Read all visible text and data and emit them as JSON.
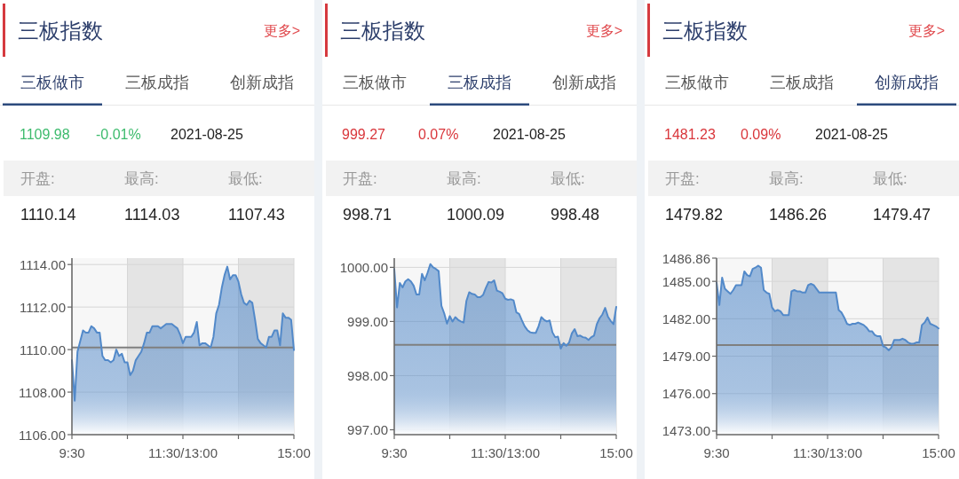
{
  "chart_data": [
    {
      "type": "area",
      "title": "三板指数",
      "annotations": [
        "更多>",
        "三板做市",
        "三板成指",
        "创新成指",
        "1109.98",
        "-0.01%",
        "2021-08-25",
        "开盘:",
        "最高:",
        "最低:",
        "1110.14",
        "1114.03",
        "1107.43"
      ],
      "color": "#5289c9",
      "categories": [
        "9:30",
        null,
        null,
        null,
        null,
        null,
        null,
        null,
        null,
        null,
        null,
        null,
        null,
        null,
        null,
        null,
        null,
        null,
        null,
        null,
        null,
        null,
        null,
        null,
        null,
        null,
        null,
        null,
        null,
        null,
        null,
        null,
        null,
        null,
        null,
        null,
        null,
        null,
        null,
        null,
        "11:30/13:00",
        null,
        null,
        null,
        null,
        null,
        null,
        null,
        null,
        null,
        null,
        null,
        null,
        null,
        null,
        null,
        null,
        null,
        null,
        null,
        null,
        null,
        null,
        null,
        null,
        null,
        null,
        null,
        null,
        null,
        null,
        null,
        null,
        null,
        null,
        null,
        null,
        null,
        null,
        null,
        "15:00"
      ],
      "values": [
        1109.5,
        1107.6,
        1109.9,
        1110.4,
        1110.9,
        1110.8,
        1110.8,
        1111.1,
        1111.0,
        1110.8,
        1110.8,
        1109.7,
        1109.5,
        1109.5,
        1109.4,
        1109.5,
        1110.0,
        1109.7,
        1109.8,
        1109.4,
        1109.4,
        1108.8,
        1109.0,
        1109.5,
        1109.7,
        1109.9,
        1110.3,
        1110.8,
        1110.8,
        1111.1,
        1111.1,
        1111.1,
        1111.0,
        1111.1,
        1111.2,
        1111.2,
        1111.2,
        1111.1,
        1111.0,
        1110.7,
        1110.3,
        1110.6,
        1110.6,
        1110.6,
        1110.8,
        1111.3,
        1110.2,
        1110.3,
        1110.3,
        1110.2,
        1110.1,
        1110.6,
        1111.7,
        1112.1,
        1112.9,
        1113.5,
        1113.9,
        1113.3,
        1113.5,
        1113.5,
        1113.2,
        1112.6,
        1112.2,
        1112.1,
        1112.3,
        1112.2,
        1111.4,
        1110.5,
        1110.3,
        1110.2,
        1110.1,
        1110.6,
        1110.6,
        1110.9,
        1110.9,
        1110.2,
        1111.7,
        1111.5,
        1111.5,
        1111.4,
        1109.98
      ],
      "ylim": [
        1106,
        1114.3
      ],
      "yticks": [
        {
          "value": 1106,
          "label": "1106.00"
        },
        {
          "value": 1108,
          "label": "1108.00"
        },
        {
          "value": 1110,
          "label": "1110.00"
        },
        {
          "value": 1112,
          "label": "1112.00"
        },
        {
          "value": 1114,
          "label": "1114.00"
        }
      ],
      "grid": true,
      "ref_lines": [
        {
          "axis": "y",
          "value": 1110.1,
          "color": "#7f7f7f"
        }
      ]
    },
    {
      "type": "area",
      "title": "三板指数",
      "annotations": [
        "更多>",
        "三板做市",
        "三板成指",
        "创新成指",
        "999.27",
        "0.07%",
        "2021-08-25",
        "开盘:",
        "最高:",
        "最低:",
        "998.71",
        "1000.09",
        "998.48"
      ],
      "color": "#5289c9",
      "categories": [
        "9:30",
        null,
        null,
        null,
        null,
        null,
        null,
        null,
        null,
        null,
        null,
        null,
        null,
        null,
        null,
        null,
        null,
        null,
        null,
        null,
        null,
        null,
        null,
        null,
        null,
        null,
        null,
        null,
        null,
        null,
        null,
        null,
        null,
        null,
        null,
        null,
        null,
        null,
        null,
        null,
        "11:30/13:00",
        null,
        null,
        null,
        null,
        null,
        null,
        null,
        null,
        null,
        null,
        null,
        null,
        null,
        null,
        null,
        null,
        null,
        null,
        null,
        null,
        null,
        null,
        null,
        null,
        null,
        null,
        null,
        null,
        null,
        null,
        null,
        null,
        null,
        null,
        null,
        null,
        null,
        null,
        null,
        "15:00"
      ],
      "values": [
        999.97,
        999.26,
        999.71,
        999.63,
        999.74,
        999.78,
        999.74,
        999.66,
        999.5,
        999.5,
        999.88,
        999.76,
        999.9,
        1000.06,
        1000.0,
        999.97,
        999.93,
        999.29,
        999.15,
        998.96,
        999.1,
        999.0,
        999.08,
        999.03,
        999.0,
        998.98,
        999.38,
        999.54,
        999.51,
        999.5,
        999.45,
        999.45,
        999.49,
        999.62,
        999.73,
        999.72,
        999.76,
        999.57,
        999.55,
        999.52,
        999.42,
        999.4,
        999.41,
        999.39,
        999.17,
        999.14,
        999.02,
        998.91,
        998.84,
        998.8,
        998.79,
        998.79,
        998.91,
        999.08,
        999.03,
        999.0,
        999.02,
        998.8,
        998.71,
        998.72,
        998.5,
        998.6,
        998.55,
        998.61,
        998.78,
        998.86,
        998.73,
        998.74,
        998.71,
        998.7,
        998.66,
        998.71,
        998.74,
        998.95,
        999.06,
        999.13,
        999.25,
        999.09,
        999.01,
        998.95,
        999.27
      ],
      "ylim": [
        996.91,
        1000.17
      ],
      "yticks": [
        {
          "value": 997,
          "label": "997.00"
        },
        {
          "value": 998,
          "label": "998.00"
        },
        {
          "value": 999,
          "label": "999.00"
        },
        {
          "value": 1000,
          "label": "1000.00"
        }
      ],
      "grid": true,
      "ref_lines": [
        {
          "axis": "y",
          "value": 998.57,
          "color": "#7f7f7f"
        }
      ]
    },
    {
      "type": "area",
      "title": "三板指数",
      "annotations": [
        "更多>",
        "三板做市",
        "三板成指",
        "创新成指",
        "1481.23",
        "0.09%",
        "2021-08-25",
        "开盘:",
        "最高:",
        "最低:",
        "1479.82",
        "1486.26",
        "1479.47"
      ],
      "color": "#5289c9",
      "categories": [
        "9:30",
        null,
        null,
        null,
        null,
        null,
        null,
        null,
        null,
        null,
        null,
        null,
        null,
        null,
        null,
        null,
        null,
        null,
        null,
        null,
        null,
        null,
        null,
        null,
        null,
        null,
        null,
        null,
        null,
        null,
        null,
        null,
        null,
        null,
        null,
        null,
        null,
        null,
        null,
        null,
        "11:30/13:00",
        null,
        null,
        null,
        null,
        null,
        null,
        null,
        null,
        null,
        null,
        null,
        null,
        null,
        null,
        null,
        null,
        null,
        null,
        null,
        null,
        null,
        null,
        null,
        null,
        null,
        null,
        null,
        null,
        null,
        null,
        null,
        null,
        null,
        null,
        null,
        null,
        null,
        null,
        null,
        "15:00"
      ],
      "values": [
        1484.9,
        1483.1,
        1485.3,
        1484.4,
        1484.2,
        1484.0,
        1484.3,
        1484.7,
        1484.7,
        1484.7,
        1485.8,
        1485.5,
        1485.4,
        1486.0,
        1486.1,
        1486.26,
        1486.1,
        1484.3,
        1484.1,
        1484.0,
        1482.9,
        1482.6,
        1482.7,
        1482.6,
        1482.3,
        1482.3,
        1482.3,
        1484.2,
        1484.3,
        1484.2,
        1484.2,
        1484.1,
        1484.1,
        1484.7,
        1484.8,
        1484.7,
        1484.4,
        1484.1,
        1484.1,
        1484.1,
        1484.1,
        1484.1,
        1484.1,
        1484.1,
        1482.7,
        1482.5,
        1482.1,
        1481.6,
        1481.5,
        1481.6,
        1481.6,
        1481.7,
        1481.6,
        1481.5,
        1481.3,
        1481.0,
        1481.0,
        1480.7,
        1480.6,
        1480.6,
        1479.8,
        1479.7,
        1479.47,
        1479.7,
        1480.3,
        1480.3,
        1480.3,
        1480.4,
        1480.3,
        1480.1,
        1480.0,
        1480.0,
        1480.1,
        1480.1,
        1481.5,
        1481.7,
        1482.1,
        1481.6,
        1481.5,
        1481.4,
        1481.23
      ],
      "ylim": [
        1472.71,
        1486.86
      ],
      "yticks": [
        {
          "value": 1473,
          "label": "1473.00"
        },
        {
          "value": 1476,
          "label": "1476.00"
        },
        {
          "value": 1479,
          "label": "1479.00"
        },
        {
          "value": 1482,
          "label": "1482.00"
        },
        {
          "value": 1485,
          "label": "1485.00"
        },
        {
          "value": 1486.86,
          "label": "1486.86"
        }
      ],
      "grid": true,
      "ref_lines": [
        {
          "axis": "y",
          "value": 1479.9,
          "color": "#7f7f7f"
        }
      ]
    }
  ]
}
